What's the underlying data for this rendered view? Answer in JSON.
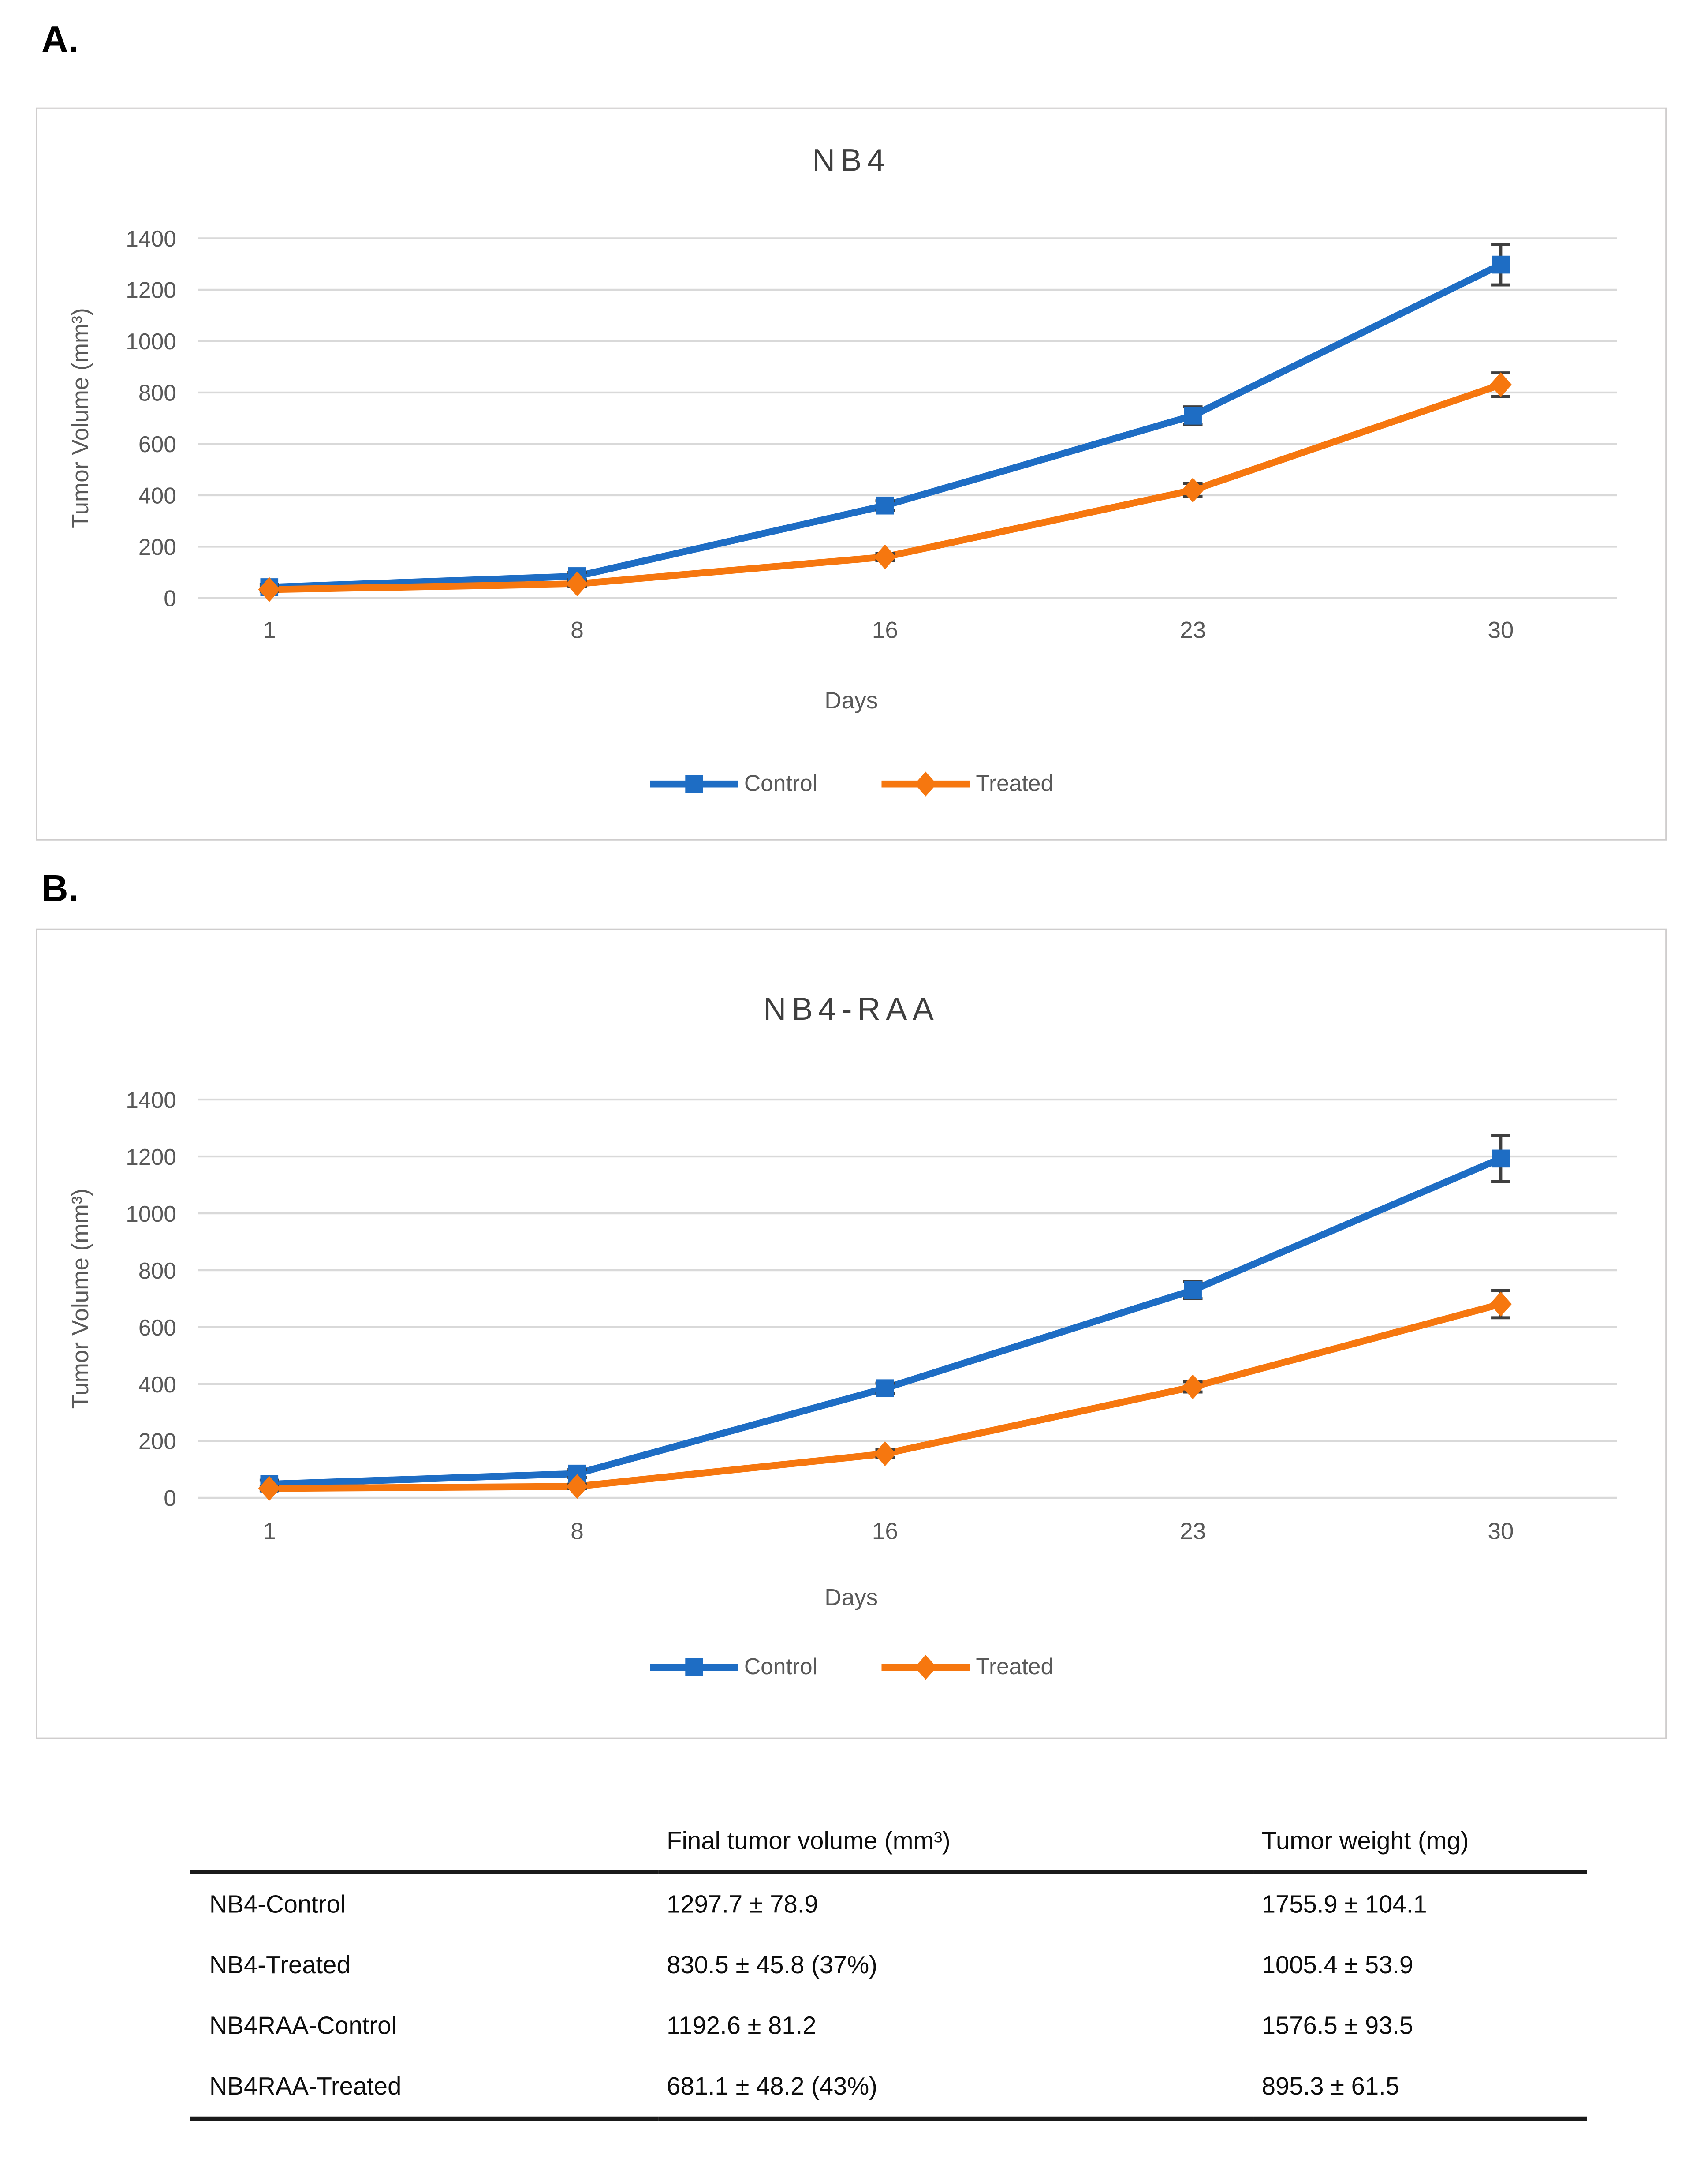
{
  "figure": {
    "panel_a_label": "A.",
    "panel_b_label": "B."
  },
  "chart_data": [
    {
      "type": "line",
      "title": "NB4",
      "xlabel": "Days",
      "ylabel": "Tumor Volume (mm³)",
      "x_categories": [
        "1",
        "8",
        "16",
        "23",
        "30"
      ],
      "ylim": [
        0,
        1400
      ],
      "y_ticks": [
        0,
        200,
        400,
        600,
        800,
        1000,
        1200,
        1400
      ],
      "grid": "horizontal",
      "legend_position": "bottom",
      "series": [
        {
          "name": "Control",
          "marker": "square",
          "color": "#1e6dc4",
          "values": [
            42,
            85,
            360,
            710,
            1297.7
          ],
          "errors": [
            12,
            14,
            18,
            34,
            78.9
          ]
        },
        {
          "name": "Treated",
          "marker": "diamond",
          "color": "#f6770f",
          "values": [
            33,
            55,
            160,
            420,
            830.5
          ],
          "errors": [
            8,
            10,
            14,
            26,
            45.8
          ]
        }
      ]
    },
    {
      "type": "line",
      "title": "NB4-RAA",
      "xlabel": "Days",
      "ylabel": "Tumor Volume (mm³)",
      "x_categories": [
        "1",
        "8",
        "16",
        "23",
        "30"
      ],
      "ylim": [
        0,
        1400
      ],
      "y_ticks": [
        0,
        200,
        400,
        600,
        800,
        1000,
        1200,
        1400
      ],
      "grid": "horizontal",
      "legend_position": "bottom",
      "series": [
        {
          "name": "Control",
          "marker": "square",
          "color": "#1e6dc4",
          "values": [
            48,
            85,
            385,
            730,
            1192.6
          ],
          "errors": [
            14,
            14,
            18,
            30,
            81.2
          ]
        },
        {
          "name": "Treated",
          "marker": "diamond",
          "color": "#f6770f",
          "values": [
            33,
            40,
            155,
            390,
            681.1
          ],
          "errors": [
            8,
            8,
            14,
            18,
            48.2
          ]
        }
      ]
    },
    {
      "type": "table",
      "columns": [
        "",
        "Final tumor volume (mm³)",
        "Tumor weight (mg)"
      ],
      "rows": [
        {
          "label": "NB4-Control",
          "final_tumor_volume": "1297.7 ± 78.9",
          "tumor_weight": "1755.9 ± 104.1"
        },
        {
          "label": "NB4-Treated",
          "final_tumor_volume": "830.5 ± 45.8 (37%)",
          "tumor_weight": "1005.4 ± 53.9"
        },
        {
          "label": "NB4RAA-Control",
          "final_tumor_volume": "1192.6 ± 81.2",
          "tumor_weight": "1576.5 ± 93.5"
        },
        {
          "label": "NB4RAA-Treated",
          "final_tumor_volume": "681.1 ± 48.2 (43%)",
          "tumor_weight": "895.3 ± 61.5"
        }
      ]
    }
  ],
  "colors": {
    "control_blue": "#1e6dc4",
    "treated_orange": "#f6770f",
    "gridline": "#d9d9d9",
    "axis_text": "#595959",
    "title_text": "#3f3f3f",
    "error_bar": "#3f3f3f",
    "panel_border": "#cfcdcd",
    "table_text": "#0d0d0d"
  }
}
